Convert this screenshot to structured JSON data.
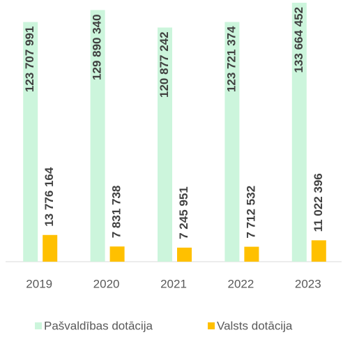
{
  "chart_data": {
    "type": "bar",
    "categories": [
      "2019",
      "2020",
      "2021",
      "2022",
      "2023"
    ],
    "series": [
      {
        "name": "Pašvaldības dotācija",
        "color": "#ccf5dc",
        "values": [
          123707991,
          129890340,
          120877242,
          123721374,
          133664452
        ],
        "value_labels": [
          "123 707 991",
          "129 890 340",
          "120 877 242",
          "123 721 374",
          "133 664 452"
        ]
      },
      {
        "name": "Valsts dotācija",
        "color": "#ffc000",
        "values": [
          13776164,
          7831738,
          7245951,
          7712532,
          11022396
        ],
        "value_labels": [
          "13 776 164",
          "7 831 738",
          "7 245 951",
          "7 712 532",
          "11 022 396"
        ]
      }
    ],
    "ylim": [
      0,
      134000000
    ]
  }
}
